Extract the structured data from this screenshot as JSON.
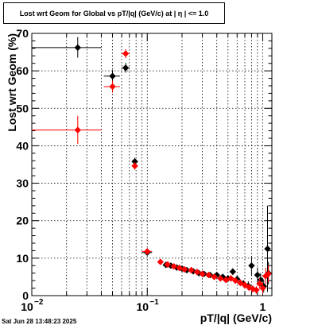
{
  "chart_data": {
    "type": "scatter",
    "title": "Lost wrt Geom for Global vs pT/|q| (GeV/c) at |  η  | <= 1.0",
    "xlabel": "pT/|q| (GeV/c)",
    "ylabel": "Lost wrt Geom (%)",
    "x_scale": "log",
    "xlim": [
      0.01,
      1.2
    ],
    "ylim": [
      0,
      70
    ],
    "grid": true,
    "x_ticks": [
      {
        "value": 0.01,
        "label": "10",
        "exp": "−2"
      },
      {
        "value": 0.1,
        "label": "10",
        "exp": "−1"
      },
      {
        "value": 1,
        "label": "1",
        "exp": ""
      }
    ],
    "y_ticks": [
      0,
      10,
      20,
      30,
      40,
      50,
      60,
      70
    ],
    "series": [
      {
        "color": "#000000",
        "points": [
          {
            "x": 0.025,
            "y": 66.2,
            "xlo": 0.01,
            "xhi": 0.04,
            "ylo": 63.5,
            "yhi": 69.0
          },
          {
            "x": 0.05,
            "y": 58.6,
            "xlo": 0.042,
            "xhi": 0.058,
            "ylo": 57.0,
            "yhi": 60.2
          },
          {
            "x": 0.065,
            "y": 60.8,
            "xlo": 0.06,
            "xhi": 0.07,
            "ylo": 59.5,
            "yhi": 62.1
          },
          {
            "x": 0.078,
            "y": 35.8,
            "xlo": 0.074,
            "xhi": 0.082,
            "ylo": 34.8,
            "yhi": 36.8
          },
          {
            "x": 0.1,
            "y": 11.5,
            "xlo": 0.09,
            "xhi": 0.11,
            "ylo": 10.8,
            "yhi": 12.2
          },
          {
            "x": 0.145,
            "y": 8.2
          },
          {
            "x": 0.16,
            "y": 8.0
          },
          {
            "x": 0.18,
            "y": 7.5
          },
          {
            "x": 0.2,
            "y": 7.2
          },
          {
            "x": 0.22,
            "y": 6.8
          },
          {
            "x": 0.25,
            "y": 6.5
          },
          {
            "x": 0.28,
            "y": 6.0
          },
          {
            "x": 0.31,
            "y": 5.8
          },
          {
            "x": 0.35,
            "y": 5.5
          },
          {
            "x": 0.4,
            "y": 5.5
          },
          {
            "x": 0.45,
            "y": 5.0
          },
          {
            "x": 0.5,
            "y": 4.6
          },
          {
            "x": 0.55,
            "y": 6.4,
            "ylo": 5.5,
            "yhi": 7.3
          },
          {
            "x": 0.6,
            "y": 4.4,
            "ylo": 3.5,
            "yhi": 5.3
          },
          {
            "x": 0.68,
            "y": 3.2,
            "ylo": 2.2,
            "yhi": 4.2
          },
          {
            "x": 0.75,
            "y": 2.6,
            "ylo": 1.5,
            "yhi": 3.8
          },
          {
            "x": 0.8,
            "y": 8.0,
            "ylo": 5.5,
            "yhi": 10.5
          },
          {
            "x": 0.9,
            "y": 5.5,
            "ylo": 3.5,
            "yhi": 7.5
          },
          {
            "x": 0.96,
            "y": 4.2,
            "ylo": 2.5,
            "yhi": 6.0
          },
          {
            "x": 1.02,
            "y": 2.5,
            "ylo": 0.8,
            "yhi": 4.2
          },
          {
            "x": 1.1,
            "y": 12.5,
            "ylo": 1.0,
            "yhi": 24.0
          },
          {
            "x": 1.12,
            "y": 6.0,
            "ylo": 3.0,
            "yhi": 9.0
          }
        ]
      },
      {
        "color": "#ff0000",
        "points": [
          {
            "x": 0.025,
            "y": 44.2,
            "xlo": 0.01,
            "xhi": 0.04,
            "ylo": 40.5,
            "yhi": 48.0
          },
          {
            "x": 0.05,
            "y": 55.8,
            "xlo": 0.042,
            "xhi": 0.058,
            "ylo": 54.2,
            "yhi": 57.4
          },
          {
            "x": 0.065,
            "y": 64.6,
            "xlo": 0.06,
            "xhi": 0.07,
            "ylo": 63.4,
            "yhi": 65.8
          },
          {
            "x": 0.078,
            "y": 34.6,
            "xlo": 0.074,
            "xhi": 0.082,
            "ylo": 33.6,
            "yhi": 35.6
          },
          {
            "x": 0.1,
            "y": 11.8,
            "xlo": 0.09,
            "xhi": 0.11,
            "ylo": 11.2,
            "yhi": 12.4
          },
          {
            "x": 0.13,
            "y": 9.0
          },
          {
            "x": 0.15,
            "y": 8.3
          },
          {
            "x": 0.17,
            "y": 7.8
          },
          {
            "x": 0.19,
            "y": 7.4
          },
          {
            "x": 0.21,
            "y": 7.0
          },
          {
            "x": 0.24,
            "y": 6.8
          },
          {
            "x": 0.27,
            "y": 6.3
          },
          {
            "x": 0.3,
            "y": 5.8
          },
          {
            "x": 0.34,
            "y": 5.5
          },
          {
            "x": 0.38,
            "y": 5.0
          },
          {
            "x": 0.43,
            "y": 4.6
          },
          {
            "x": 0.48,
            "y": 4.2
          },
          {
            "x": 0.53,
            "y": 4.6,
            "ylo": 3.8,
            "yhi": 5.4
          },
          {
            "x": 0.58,
            "y": 4.0,
            "ylo": 3.2,
            "yhi": 4.8
          },
          {
            "x": 0.64,
            "y": 3.4,
            "ylo": 2.5,
            "yhi": 4.3
          },
          {
            "x": 0.7,
            "y": 2.8,
            "ylo": 1.8,
            "yhi": 3.8
          },
          {
            "x": 0.76,
            "y": 2.2,
            "ylo": 1.2,
            "yhi": 3.2
          },
          {
            "x": 0.82,
            "y": 1.8,
            "ylo": 0.8,
            "yhi": 2.8
          },
          {
            "x": 0.88,
            "y": 1.5,
            "ylo": 0.5,
            "yhi": 2.5
          },
          {
            "x": 0.94,
            "y": 3.2,
            "ylo": 1.8,
            "yhi": 4.6
          },
          {
            "x": 1.0,
            "y": 2.0,
            "ylo": 0.5,
            "yhi": 3.5
          },
          {
            "x": 1.06,
            "y": 5.2,
            "ylo": 3.0,
            "yhi": 7.4
          },
          {
            "x": 1.12,
            "y": 5.8,
            "ylo": 3.5,
            "yhi": 8.1
          }
        ]
      }
    ]
  },
  "footer": {
    "timestamp": "Sat Jun 28 13:48:23 2025"
  }
}
